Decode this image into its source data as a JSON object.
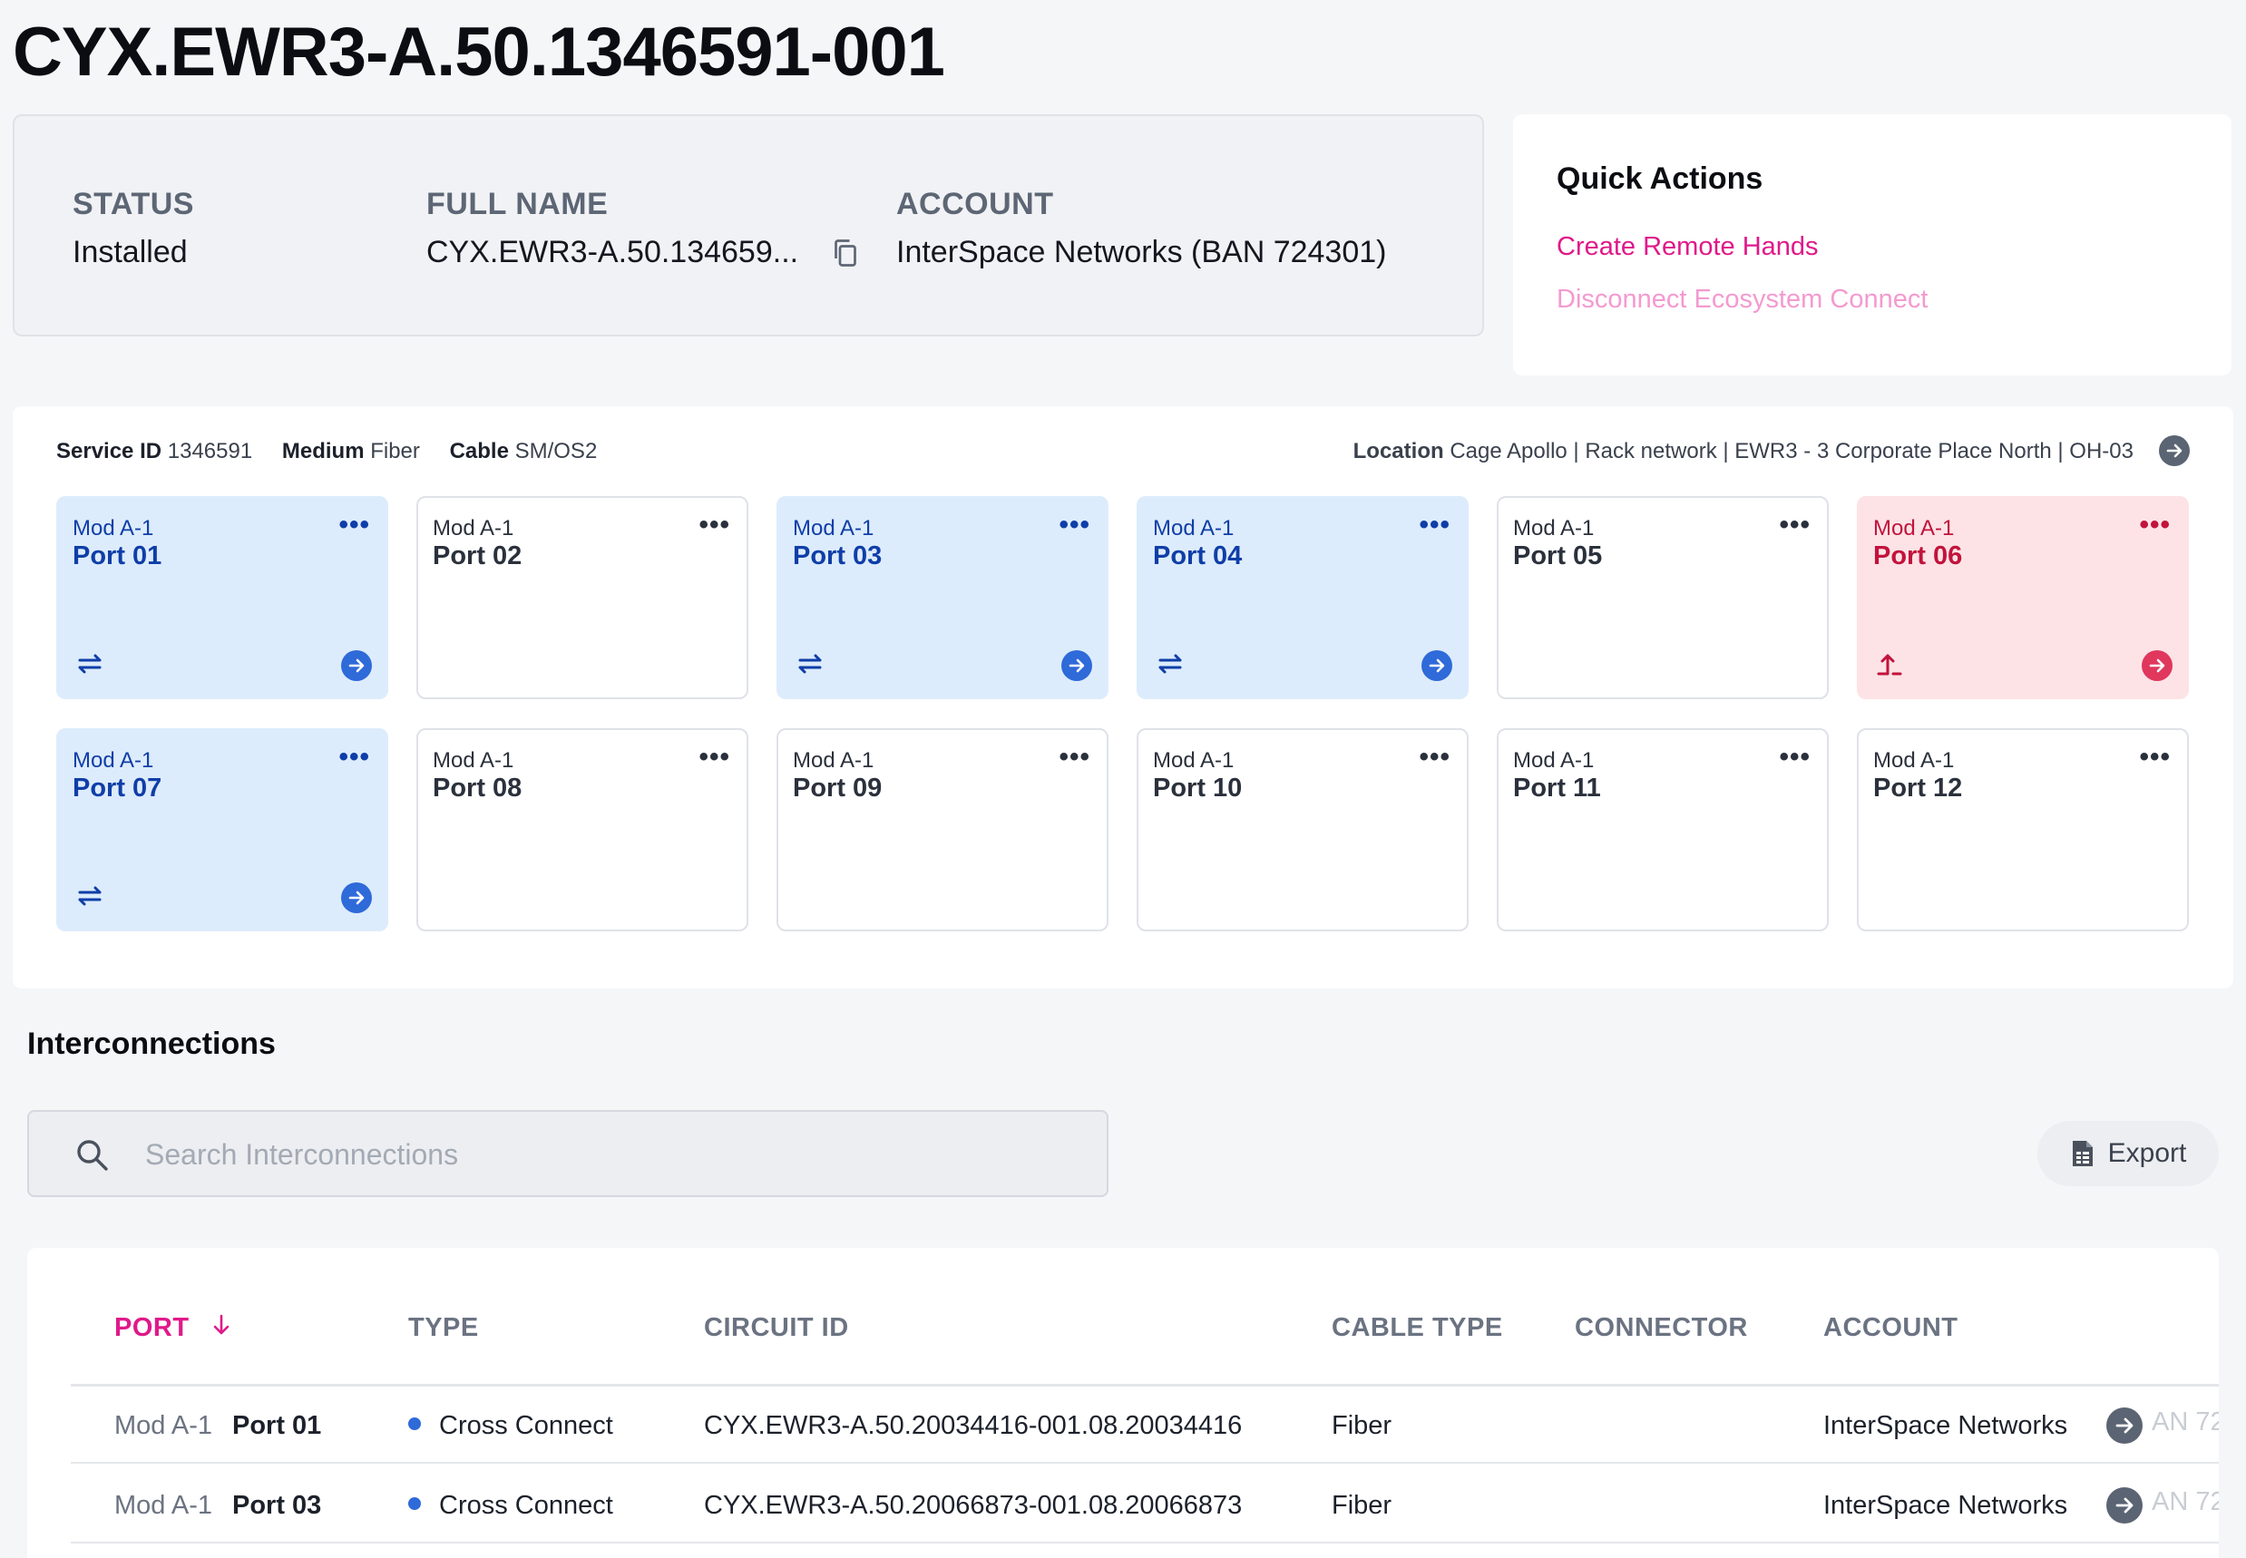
{
  "page": {
    "title": "CYX.EWR3-A.50.1346591-001"
  },
  "summary": {
    "status_label": "STATUS",
    "status_value": "Installed",
    "fullname_label": "FULL NAME",
    "fullname_value": "CYX.EWR3-A.50.134659...",
    "account_label": "ACCOUNT",
    "account_value": "InterSpace Networks (BAN 724301)"
  },
  "quick_actions": {
    "title": "Quick Actions",
    "create_remote_hands": "Create Remote Hands",
    "disconnect_ecosystem": "Disconnect Ecosystem Connect"
  },
  "service": {
    "service_id_label": "Service ID",
    "service_id": "1346591",
    "medium_label": "Medium",
    "medium": "Fiber",
    "cable_label": "Cable",
    "cable": "SM/OS2",
    "location_label": "Location",
    "location": "Cage Apollo | Rack network | EWR3 - 3 Corporate Place North | OH-03"
  },
  "ports": [
    {
      "mod": "Mod A-1",
      "name": "Port 01",
      "state": "active",
      "menu": "•••"
    },
    {
      "mod": "Mod A-1",
      "name": "Port 02",
      "state": "empty",
      "menu": "•••"
    },
    {
      "mod": "Mod A-1",
      "name": "Port 03",
      "state": "active",
      "menu": "•••"
    },
    {
      "mod": "Mod A-1",
      "name": "Port 04",
      "state": "active",
      "menu": "•••"
    },
    {
      "mod": "Mod A-1",
      "name": "Port 05",
      "state": "empty",
      "menu": "•••"
    },
    {
      "mod": "Mod A-1",
      "name": "Port 06",
      "state": "alert",
      "menu": "•••"
    },
    {
      "mod": "Mod A-1",
      "name": "Port 07",
      "state": "active",
      "menu": "•••"
    },
    {
      "mod": "Mod A-1",
      "name": "Port 08",
      "state": "empty",
      "menu": "•••"
    },
    {
      "mod": "Mod A-1",
      "name": "Port 09",
      "state": "empty",
      "menu": "•••"
    },
    {
      "mod": "Mod A-1",
      "name": "Port 10",
      "state": "empty",
      "menu": "•••"
    },
    {
      "mod": "Mod A-1",
      "name": "Port 11",
      "state": "empty",
      "menu": "•••"
    },
    {
      "mod": "Mod A-1",
      "name": "Port 12",
      "state": "empty",
      "menu": "•••"
    }
  ],
  "interconnections": {
    "title": "Interconnections",
    "search_placeholder": "Search Interconnections",
    "export_label": "Export",
    "columns": {
      "port": "PORT",
      "type": "TYPE",
      "circuit_id": "CIRCUIT ID",
      "cable_type": "CABLE TYPE",
      "connector": "CONNECTOR",
      "account": "ACCOUNT"
    },
    "rows": [
      {
        "mod": "Mod A-1",
        "port": "Port 01",
        "type": "Cross Connect",
        "circuit_id": "CYX.EWR3-A.50.20034416-001.08.20034416",
        "cable_type": "Fiber",
        "connector": "",
        "account": "InterSpace Networks",
        "account_overflow": "AN 72"
      },
      {
        "mod": "Mod A-1",
        "port": "Port 03",
        "type": "Cross Connect",
        "circuit_id": "CYX.EWR3-A.50.20066873-001.08.20066873",
        "cable_type": "Fiber",
        "connector": "",
        "account": "InterSpace Networks",
        "account_overflow": "AN 72"
      }
    ]
  },
  "colors": {
    "accent": "#e0198a",
    "port_active_bg": "#ddecfc",
    "port_active_text": "#0f3ea8",
    "port_alert_bg": "#fde3e6",
    "port_alert_text": "#c2133c",
    "type_dot": "#2f6ad9"
  },
  "icons": {
    "copy": "copy-icon",
    "location_go": "arrow-right-circle-icon",
    "port_active": "swap-arrows-icon",
    "port_alert": "arrow-up-turn-icon",
    "port_go": "arrow-right-circle-icon",
    "search": "search-icon",
    "export": "spreadsheet-icon",
    "sort": "arrow-down-icon"
  }
}
